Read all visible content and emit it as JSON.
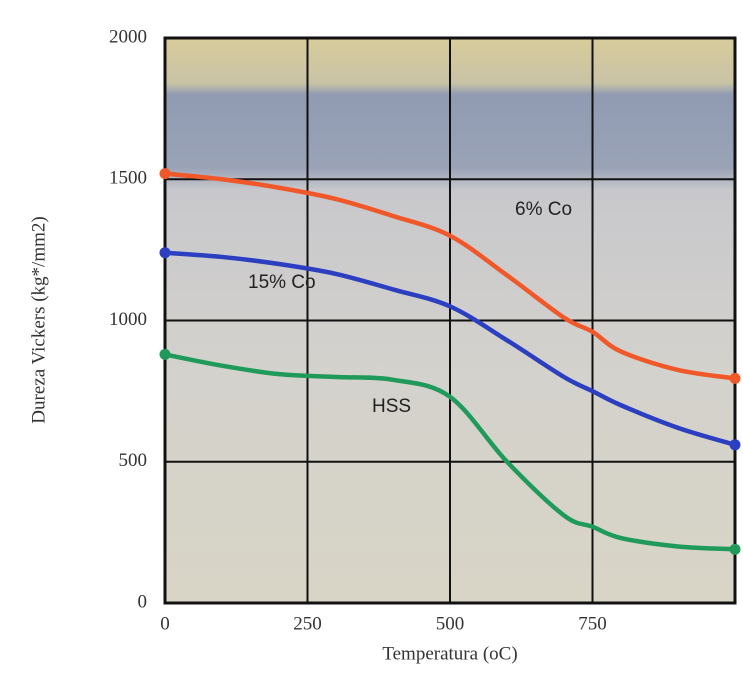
{
  "chart_data": {
    "type": "line",
    "x_label": "Temperatura (oC)",
    "y_label": "Dureza Vickers (kg*/mm2)",
    "x": [
      0,
      100,
      200,
      300,
      400,
      500,
      600,
      700,
      750,
      800,
      900,
      1000
    ],
    "series": [
      {
        "name": "6% Co",
        "color": "#f0582a",
        "values": [
          1520,
          1500,
          1470,
          1430,
          1370,
          1300,
          1160,
          1010,
          960,
          890,
          825,
          795
        ]
      },
      {
        "name": "15% Co",
        "color": "#2b3fc0",
        "values": [
          1240,
          1225,
          1200,
          1165,
          1110,
          1050,
          930,
          800,
          750,
          700,
          620,
          560
        ]
      },
      {
        "name": "HSS",
        "color": "#1f9a5a",
        "values": [
          880,
          840,
          810,
          800,
          790,
          730,
          500,
          310,
          270,
          230,
          200,
          190
        ]
      }
    ],
    "xlim": [
      0,
      1000
    ],
    "ylim": [
      0,
      2000
    ],
    "xticks": [
      0,
      250,
      500,
      750
    ],
    "yticks": [
      0,
      500,
      1000,
      1500,
      2000
    ],
    "grid": true
  }
}
